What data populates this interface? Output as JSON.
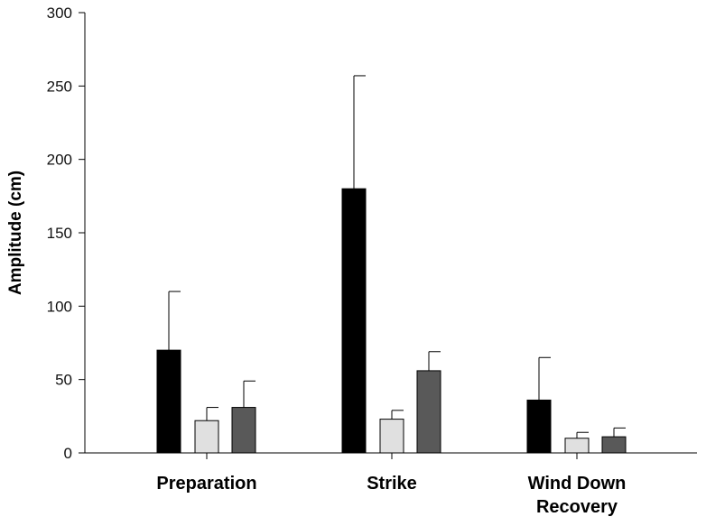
{
  "chart_data": {
    "type": "bar",
    "title": "",
    "xlabel": "",
    "ylabel": "Amplitude (cm)",
    "ylim": [
      0,
      300
    ],
    "yticks": [
      0,
      50,
      100,
      150,
      200,
      250,
      300
    ],
    "categories": [
      {
        "lines": [
          "Preparation"
        ]
      },
      {
        "lines": [
          "Strike"
        ]
      },
      {
        "lines": [
          "Wind Down",
          "Recovery"
        ]
      }
    ],
    "series": [
      {
        "color": "#000000",
        "values": [
          70,
          180,
          36
        ],
        "errors": [
          40,
          77,
          29
        ]
      },
      {
        "color": "#e0e0e0",
        "values": [
          22,
          23,
          10
        ],
        "errors": [
          9,
          6,
          4
        ]
      },
      {
        "color": "#595959",
        "values": [
          31,
          56,
          11
        ],
        "errors": [
          18,
          13,
          6
        ]
      }
    ],
    "grid": false,
    "legend": "none"
  }
}
